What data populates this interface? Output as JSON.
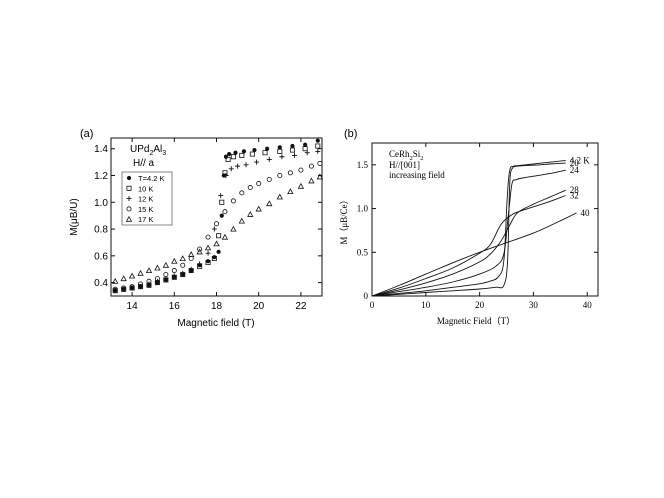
{
  "chart_data": [
    {
      "panel_label": "(a)",
      "type": "scatter",
      "title": "",
      "xlabel": "Magnetic field (T)",
      "ylabel": "M(μB/U)",
      "xlim": [
        13,
        23
      ],
      "ylim": [
        0.3,
        1.48
      ],
      "xticks": [
        14,
        16,
        18,
        20,
        22
      ],
      "yticks": [
        0.4,
        0.6,
        0.8,
        1.0,
        1.2,
        1.4
      ],
      "annotations": {
        "compound_main": "UPd",
        "compound_sub1": "2",
        "compound_mid": "Al",
        "compound_sub2": "3",
        "field_dir": "H// a"
      },
      "legend_position": "left",
      "series": [
        {
          "name": "T=4.2 K",
          "marker": "filled-circle",
          "x": [
            13.2,
            13.6,
            14.0,
            14.4,
            14.8,
            15.2,
            15.6,
            16.0,
            16.4,
            16.8,
            17.2,
            17.6,
            17.9,
            18.1,
            18.25,
            18.35,
            18.45,
            18.6,
            18.9,
            19.3,
            19.8,
            20.4,
            21.0,
            21.6,
            22.2,
            22.8
          ],
          "y": [
            0.34,
            0.35,
            0.36,
            0.37,
            0.38,
            0.4,
            0.42,
            0.44,
            0.46,
            0.49,
            0.53,
            0.56,
            0.59,
            0.63,
            0.9,
            1.2,
            1.34,
            1.36,
            1.37,
            1.38,
            1.39,
            1.4,
            1.41,
            1.42,
            1.43,
            1.46
          ]
        },
        {
          "name": "10 K",
          "marker": "open-square",
          "x": [
            13.2,
            13.6,
            14.0,
            14.4,
            14.8,
            15.2,
            15.6,
            16.0,
            16.4,
            16.8,
            17.2,
            17.6,
            17.9,
            18.1,
            18.25,
            18.4,
            18.55,
            18.8,
            19.2,
            19.7,
            20.3,
            21.0,
            21.6,
            22.2,
            22.8
          ],
          "y": [
            0.34,
            0.35,
            0.36,
            0.37,
            0.38,
            0.4,
            0.42,
            0.44,
            0.46,
            0.49,
            0.52,
            0.55,
            0.58,
            0.75,
            1.0,
            1.22,
            1.32,
            1.34,
            1.35,
            1.36,
            1.37,
            1.38,
            1.39,
            1.4,
            1.42
          ]
        },
        {
          "name": "12 K",
          "marker": "plus",
          "x": [
            13.2,
            13.6,
            14.0,
            14.4,
            14.8,
            15.2,
            15.6,
            16.0,
            16.4,
            16.8,
            17.2,
            17.6,
            17.9,
            18.2,
            18.45,
            18.7,
            19.0,
            19.4,
            19.9,
            20.5,
            21.1,
            21.7,
            22.3,
            22.8
          ],
          "y": [
            0.34,
            0.35,
            0.36,
            0.37,
            0.39,
            0.41,
            0.43,
            0.45,
            0.47,
            0.5,
            0.54,
            0.62,
            0.8,
            1.05,
            1.2,
            1.25,
            1.27,
            1.28,
            1.3,
            1.32,
            1.34,
            1.35,
            1.37,
            1.38
          ]
        },
        {
          "name": "15 K",
          "marker": "open-circle",
          "x": [
            13.2,
            13.6,
            14.0,
            14.4,
            14.8,
            15.2,
            15.6,
            16.0,
            16.4,
            16.8,
            17.2,
            17.6,
            18.0,
            18.4,
            18.8,
            19.2,
            19.6,
            20.0,
            20.5,
            21.0,
            21.5,
            22.0,
            22.5,
            22.9
          ],
          "y": [
            0.35,
            0.36,
            0.37,
            0.39,
            0.41,
            0.43,
            0.46,
            0.49,
            0.53,
            0.58,
            0.65,
            0.74,
            0.84,
            0.93,
            1.01,
            1.07,
            1.11,
            1.14,
            1.17,
            1.2,
            1.22,
            1.24,
            1.27,
            1.29
          ]
        },
        {
          "name": "17 K",
          "marker": "open-triangle",
          "x": [
            13.2,
            13.6,
            14.0,
            14.4,
            14.8,
            15.2,
            15.6,
            16.0,
            16.4,
            16.8,
            17.2,
            17.6,
            18.0,
            18.4,
            18.8,
            19.2,
            19.6,
            20.0,
            20.5,
            21.0,
            21.5,
            22.0,
            22.5,
            22.9
          ],
          "y": [
            0.41,
            0.43,
            0.45,
            0.47,
            0.49,
            0.51,
            0.53,
            0.56,
            0.58,
            0.61,
            0.63,
            0.66,
            0.69,
            0.74,
            0.8,
            0.86,
            0.91,
            0.95,
            0.99,
            1.04,
            1.08,
            1.12,
            1.16,
            1.19
          ]
        }
      ]
    },
    {
      "panel_label": "(b)",
      "type": "line",
      "title": "",
      "xlabel": "Magnetic Field（T）",
      "ylabel": "M（μB/Ce）",
      "xlim": [
        0,
        42
      ],
      "ylim": [
        0,
        1.75
      ],
      "xticks": [
        0,
        10,
        20,
        30,
        40
      ],
      "yticks": [
        0,
        0.5,
        1.0,
        1.5
      ],
      "annotations": {
        "compound_main": "CeRh",
        "compound_sub1": "2",
        "compound_mid": "Si",
        "compound_sub2": "2",
        "field_dir": "H//[001]",
        "sweep": "increasing field"
      },
      "series": [
        {
          "name": "4.2 K",
          "x": [
            0,
            5,
            10,
            15,
            20,
            23,
            24.5,
            25.2,
            25.6,
            26.2,
            27,
            30,
            33,
            36
          ],
          "y": [
            0,
            0.02,
            0.04,
            0.06,
            0.08,
            0.1,
            0.12,
            0.4,
            1.3,
            1.47,
            1.49,
            1.51,
            1.53,
            1.55
          ]
        },
        {
          "name": "20",
          "x": [
            0,
            5,
            10,
            15,
            20,
            22,
            23.5,
            24.5,
            25.1,
            25.6,
            26.5,
            28,
            31,
            33,
            36
          ],
          "y": [
            0,
            0.03,
            0.06,
            0.1,
            0.14,
            0.17,
            0.22,
            0.4,
            1.1,
            1.44,
            1.48,
            1.49,
            1.5,
            1.51,
            1.52
          ]
        },
        {
          "name": "24",
          "x": [
            0,
            5,
            10,
            15,
            20,
            23,
            24.5,
            25.3,
            26,
            26.8,
            28,
            30,
            33,
            36
          ],
          "y": [
            0,
            0.05,
            0.1,
            0.16,
            0.25,
            0.34,
            0.48,
            0.9,
            1.28,
            1.33,
            1.35,
            1.37,
            1.4,
            1.44
          ]
        },
        {
          "name": "28",
          "x": [
            0,
            5,
            10,
            15,
            20,
            22,
            24,
            25.5,
            27,
            30,
            33,
            36
          ],
          "y": [
            0,
            0.07,
            0.15,
            0.25,
            0.39,
            0.48,
            0.63,
            0.8,
            0.95,
            1.05,
            1.13,
            1.21
          ]
        },
        {
          "name": "32",
          "x": [
            0,
            5,
            10,
            15,
            20,
            22,
            24,
            26,
            28,
            30,
            33,
            36
          ],
          "y": [
            0,
            0.09,
            0.2,
            0.32,
            0.49,
            0.59,
            0.82,
            0.93,
            0.98,
            1.02,
            1.08,
            1.15
          ]
        },
        {
          "name": "40",
          "x": [
            0,
            5,
            10,
            15,
            20,
            25,
            30,
            35,
            38
          ],
          "y": [
            0,
            0.12,
            0.25,
            0.38,
            0.5,
            0.61,
            0.72,
            0.86,
            0.95
          ]
        }
      ]
    }
  ]
}
